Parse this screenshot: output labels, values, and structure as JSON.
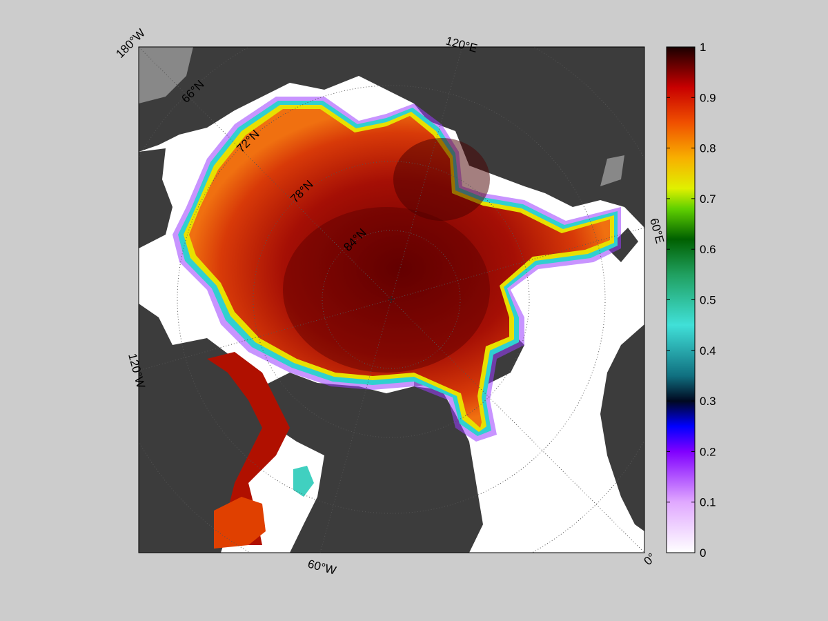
{
  "map": {
    "colors": {
      "figure_background": "#cccccc",
      "ocean": "#ffffff",
      "land": "#3c3c3c",
      "land_shaded": "#888888",
      "grid": "#555555"
    },
    "grid_labels": {
      "lon_180w": "180°W",
      "lon_120e": "120°E",
      "lon_60e": "60°E",
      "lon_120w": "120°W",
      "lon_60w": "60°W",
      "lon_0": "0°",
      "lat_66n": "66°N",
      "lat_72n": "72°N",
      "lat_78n": "78°N",
      "lat_84n": "84°N"
    }
  },
  "colorbar": {
    "min": 0,
    "max": 1,
    "tick_labels": [
      "0",
      "0.1",
      "0.2",
      "0.3",
      "0.4",
      "0.5",
      "0.6",
      "0.7",
      "0.8",
      "0.9",
      "1"
    ],
    "stops": [
      {
        "value": 0.0,
        "color": "#ffffff"
      },
      {
        "value": 0.1,
        "color": "#e0a8ff"
      },
      {
        "value": 0.2,
        "color": "#8000ff"
      },
      {
        "value": 0.25,
        "color": "#0000ff"
      },
      {
        "value": 0.3,
        "color": "#000820"
      },
      {
        "value": 0.35,
        "color": "#107080"
      },
      {
        "value": 0.45,
        "color": "#40e0d8"
      },
      {
        "value": 0.55,
        "color": "#20a060"
      },
      {
        "value": 0.62,
        "color": "#006000"
      },
      {
        "value": 0.68,
        "color": "#60d000"
      },
      {
        "value": 0.72,
        "color": "#e0f000"
      },
      {
        "value": 0.78,
        "color": "#f8b000"
      },
      {
        "value": 0.85,
        "color": "#f05000"
      },
      {
        "value": 0.92,
        "color": "#c80000"
      },
      {
        "value": 1.0,
        "color": "#1a0000"
      }
    ]
  }
}
